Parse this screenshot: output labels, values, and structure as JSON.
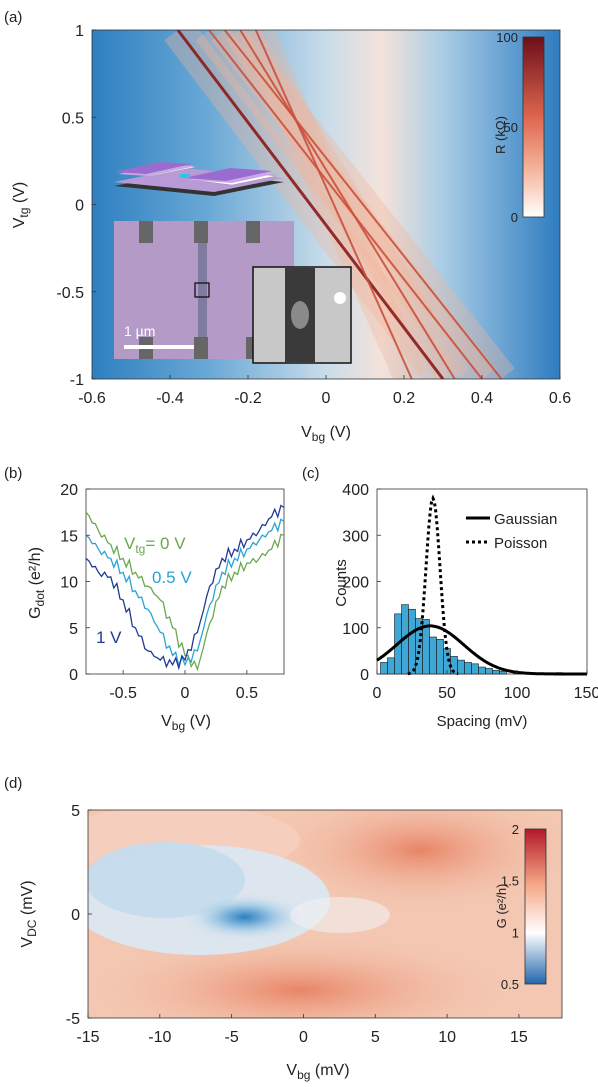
{
  "figure": {
    "panels": [
      {
        "letter": "(a)",
        "chart_data": {
          "type": "heatmap",
          "xlabel": "V_bg (V)",
          "ylabel": "V_tg (V)",
          "xlim": [
            -0.6,
            0.6
          ],
          "ylim": [
            -1,
            1
          ],
          "xticks": [
            -0.6,
            -0.4,
            -0.2,
            0,
            0.2,
            0.4,
            0.6
          ],
          "yticks": [
            -1,
            -0.5,
            0,
            0.5,
            1
          ],
          "colorbar": {
            "label": "R (kΩ)",
            "ticks": [
              0,
              50,
              100
            ],
            "range": [
              0,
              100
            ],
            "colors": [
              "#ffffff",
              "#e8856a",
              "#6b0f1a"
            ]
          },
          "resonance_lines": [
            {
              "v_bg_at_vtg_top": -0.38,
              "v_bg_at_vtg_bottom": 0.3
            },
            {
              "v_bg_at_vtg_top": -0.3,
              "v_bg_at_vtg_bottom": 0.4
            },
            {
              "v_bg_at_vtg_top": -0.26,
              "v_bg_at_vtg_bottom": 0.45
            },
            {
              "v_bg_at_vtg_top": -0.22,
              "v_bg_at_vtg_bottom": 0.33
            },
            {
              "v_bg_at_vtg_top": -0.18,
              "v_bg_at_vtg_bottom": 0.22
            }
          ],
          "inset_scale_bar": "1 µm"
        }
      },
      {
        "letter": "(b)",
        "chart_data": {
          "type": "line",
          "xlabel": "V_bg (V)",
          "ylabel": "G_dot (e²/h)",
          "xlim": [
            -0.8,
            0.8
          ],
          "ylim": [
            0,
            20
          ],
          "xticks": [
            -0.5,
            0,
            0.5
          ],
          "yticks": [
            0,
            5,
            10,
            15,
            20
          ],
          "x": [
            -0.8,
            -0.7,
            -0.6,
            -0.5,
            -0.4,
            -0.3,
            -0.2,
            -0.1,
            0.0,
            0.1,
            0.2,
            0.3,
            0.4,
            0.5,
            0.6,
            0.7,
            0.8
          ],
          "series": [
            {
              "name": "V_tg= 0 V",
              "label_parts": [
                "V",
                "tg",
                "= 0 V"
              ],
              "color": "#6aa84f",
              "values": [
                17.5,
                15.5,
                14.0,
                12.5,
                11.0,
                9.5,
                8.0,
                5.0,
                2.0,
                0.5,
                5.5,
                9.5,
                11.0,
                12.0,
                12.5,
                13.5,
                15.0
              ]
            },
            {
              "name": "0.5 V",
              "label_parts": [
                "",
                "",
                "0.5 V"
              ],
              "color": "#29a3d6",
              "values": [
                15.0,
                13.5,
                12.5,
                11.0,
                9.0,
                7.0,
                4.5,
                2.0,
                1.0,
                2.5,
                7.5,
                11.0,
                12.5,
                13.5,
                14.5,
                15.5,
                16.5
              ]
            },
            {
              "name": "1 V",
              "label_parts": [
                "",
                "",
                "1 V"
              ],
              "color": "#1f3a93",
              "values": [
                12.5,
                11.0,
                10.5,
                8.0,
                5.0,
                2.5,
                1.5,
                1.0,
                1.5,
                4.5,
                9.5,
                12.5,
                13.5,
                14.5,
                15.5,
                17.0,
                18.0
              ]
            }
          ]
        }
      },
      {
        "letter": "(c)",
        "chart_data": {
          "type": "bar",
          "xlabel": "Spacing (mV)",
          "ylabel": "Counts",
          "xlim": [
            0,
            150
          ],
          "ylim": [
            0,
            400
          ],
          "xticks": [
            0,
            50,
            100,
            150
          ],
          "yticks": [
            0,
            100,
            200,
            300,
            400
          ],
          "bin_width": 5,
          "bins": [
            {
              "x": 5,
              "v": 25
            },
            {
              "x": 10,
              "v": 35
            },
            {
              "x": 15,
              "v": 130
            },
            {
              "x": 20,
              "v": 150
            },
            {
              "x": 25,
              "v": 140
            },
            {
              "x": 30,
              "v": 120
            },
            {
              "x": 35,
              "v": 118
            },
            {
              "x": 40,
              "v": 80
            },
            {
              "x": 45,
              "v": 75
            },
            {
              "x": 50,
              "v": 55
            },
            {
              "x": 55,
              "v": 38
            },
            {
              "x": 60,
              "v": 30
            },
            {
              "x": 65,
              "v": 25
            },
            {
              "x": 70,
              "v": 22
            },
            {
              "x": 75,
              "v": 15
            },
            {
              "x": 80,
              "v": 12
            },
            {
              "x": 85,
              "v": 8
            },
            {
              "x": 90,
              "v": 6
            },
            {
              "x": 100,
              "v": 3
            },
            {
              "x": 110,
              "v": 2
            },
            {
              "x": 120,
              "v": 2
            },
            {
              "x": 130,
              "v": 3
            }
          ],
          "bar_color": "#3fa7d6",
          "gaussian": {
            "name": "Gaussian",
            "mean": 38,
            "sigma": 24,
            "peak": 104
          },
          "poisson": {
            "name": "Poisson",
            "mean": 40,
            "sigma": 5,
            "peak": 380
          }
        }
      },
      {
        "letter": "(d)",
        "chart_data": {
          "type": "heatmap",
          "xlabel": "V_bg (mV)",
          "ylabel": "V_DC (mV)",
          "xlim": [
            -15,
            18
          ],
          "ylim": [
            -5,
            5
          ],
          "xticks": [
            -15,
            -10,
            -5,
            0,
            5,
            10,
            15
          ],
          "yticks": [
            -5,
            0,
            5
          ],
          "colorbar": {
            "label": "G (e²/h)",
            "ticks": [
              0.5,
              1,
              1.5,
              2
            ],
            "range": [
              0.5,
              2
            ],
            "colors": [
              "#2166ac",
              "#ffffff",
              "#b2182b"
            ]
          },
          "low_conductance_center": {
            "v_bg": -5,
            "v_dc": 0
          }
        }
      }
    ]
  }
}
